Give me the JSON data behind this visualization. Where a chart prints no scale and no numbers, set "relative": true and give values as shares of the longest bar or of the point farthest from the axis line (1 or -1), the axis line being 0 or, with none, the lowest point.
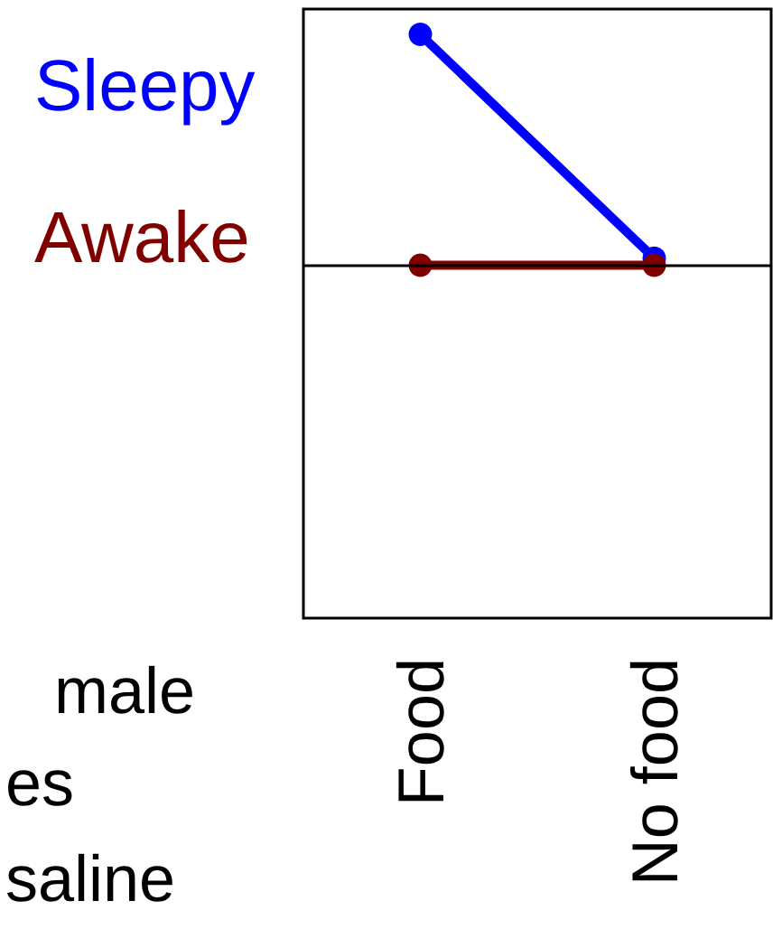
{
  "chart_data": {
    "type": "line",
    "relative": true,
    "categories": [
      "Food",
      "No food"
    ],
    "series": [
      {
        "name": "Sleepy",
        "color": "#0000ff",
        "values": [
          1,
          0.03
        ]
      },
      {
        "name": "Awake",
        "color": "#800000",
        "values": [
          0,
          0
        ]
      }
    ],
    "marker": "circle",
    "line_style": "solid",
    "legend": "left",
    "ref_lines": [
      {
        "axis": "y",
        "value": 0,
        "color": "#000000"
      }
    ],
    "annotations": [
      "male",
      "es",
      "saline"
    ]
  }
}
